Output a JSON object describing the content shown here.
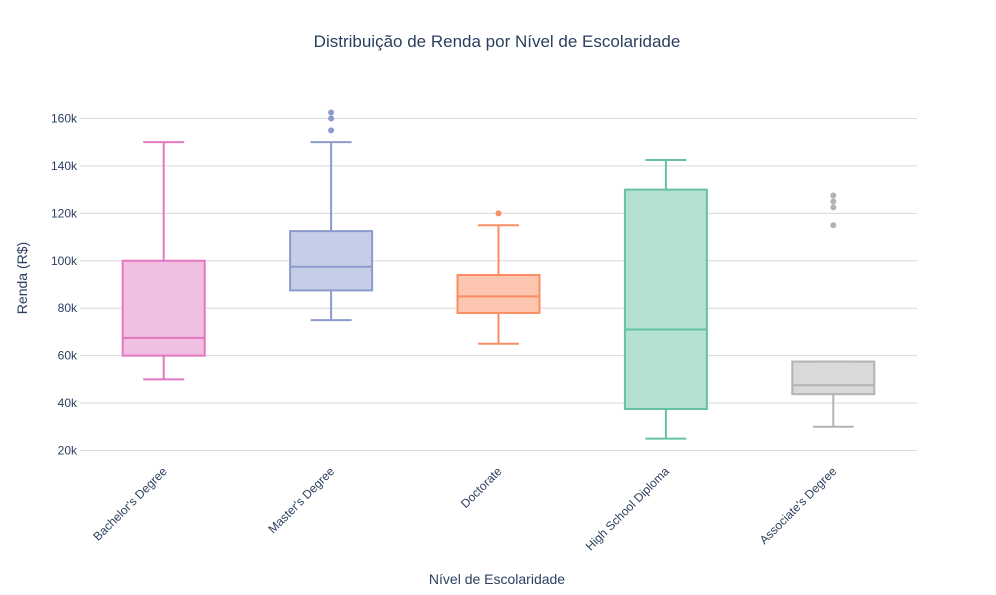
{
  "chart_data": {
    "type": "box",
    "title": "Distribuição de Renda por Nível de Escolaridade",
    "xlabel": "Nível de Escolaridade",
    "ylabel": "Renda (R$)",
    "y_ticks": [
      {
        "value": 20000,
        "label": "20k"
      },
      {
        "value": 40000,
        "label": "40k"
      },
      {
        "value": 60000,
        "label": "60k"
      },
      {
        "value": 80000,
        "label": "80k"
      },
      {
        "value": 100000,
        "label": "100k"
      },
      {
        "value": 120000,
        "label": "120k"
      },
      {
        "value": 140000,
        "label": "140k"
      },
      {
        "value": 160000,
        "label": "160k"
      }
    ],
    "ylim": [
      16000,
      172000
    ],
    "grid": true,
    "legend": false,
    "series": [
      {
        "category": "Bachelor's Degree",
        "color": "#e377c2",
        "fill": "#f1bfe1",
        "min": 50000,
        "q1": 60000,
        "median": 67500,
        "q3": 100000,
        "max": 150000,
        "outliers": []
      },
      {
        "category": "Master's Degree",
        "color": "#8c9bcd",
        "fill": "#c6cde6",
        "min": 75000,
        "q1": 87500,
        "median": 97500,
        "q3": 112500,
        "max": 150000,
        "outliers": [
          155000,
          160000,
          162500
        ]
      },
      {
        "category": "Doctorate",
        "color": "#fc8d62",
        "fill": "#fdc6b0",
        "min": 65000,
        "q1": 78000,
        "median": 85000,
        "q3": 94000,
        "max": 115000,
        "outliers": [
          120000
        ]
      },
      {
        "category": "High School Diploma",
        "color": "#66c2a5",
        "fill": "#b3e0d2",
        "min": 25000,
        "q1": 37500,
        "median": 71000,
        "q3": 130000,
        "max": 142500,
        "outliers": []
      },
      {
        "category": "Associate's Degree",
        "color": "#b3b3b3",
        "fill": "#d9d9d9",
        "min": 30000,
        "q1": 43750,
        "median": 47500,
        "q3": 57500,
        "max": 57500,
        "outliers": [
          115000,
          122500,
          125000,
          127500
        ]
      }
    ]
  }
}
